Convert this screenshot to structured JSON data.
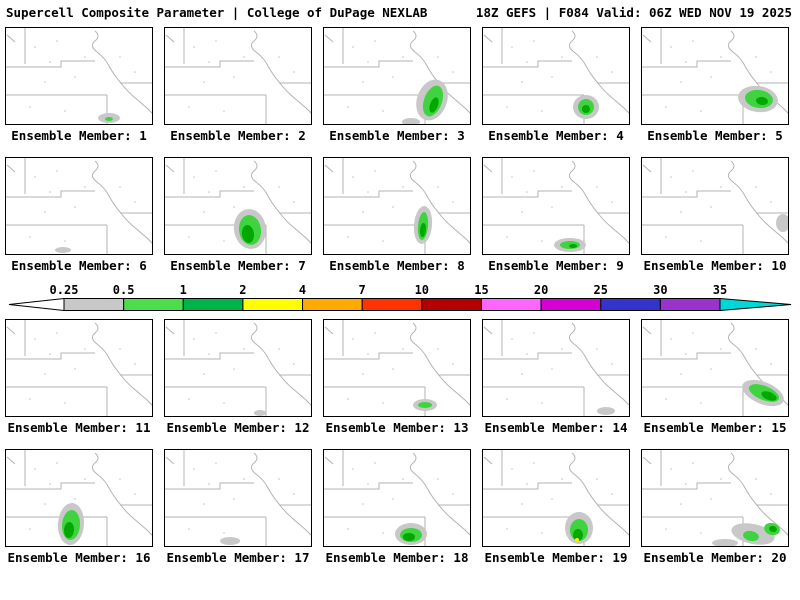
{
  "header": {
    "left": "Supercell Composite Parameter | College of DuPage NEXLAB",
    "right": "18Z GEFS | F084 Valid: 06Z WED NOV 19 2025"
  },
  "colorbar": {
    "tick_labels": [
      "0.25",
      "0.5",
      "1",
      "2",
      "4",
      "7",
      "10",
      "15",
      "20",
      "25",
      "30",
      "35"
    ],
    "segment_colors": [
      "#c8c8c8",
      "#4cdc4c",
      "#00b44c",
      "#ffff00",
      "#ffaa00",
      "#ff3300",
      "#b40000",
      "#ff66ff",
      "#d400d4",
      "#3434cc",
      "#9933cc"
    ],
    "left_arrow_color": "#ffffff",
    "right_arrow_color": "#00d8d8"
  },
  "map_style": {
    "line_color": "#b3b3b3",
    "frame_color": "#000000"
  },
  "blob_colors": {
    "gray": "#c8c8c8",
    "green": "#3fd43f",
    "dgreen": "#00a800",
    "yellow": "#ffee00"
  },
  "members": [
    {
      "label": "Ensemble Member: 1",
      "blobs": [
        [
          "gray",
          104,
          91,
          11,
          5,
          0
        ],
        [
          "green",
          104,
          92,
          4,
          2,
          0
        ]
      ]
    },
    {
      "label": "Ensemble Member: 2",
      "blobs": []
    },
    {
      "label": "Ensemble Member: 3",
      "blobs": [
        [
          "gray",
          109,
          73,
          15,
          21,
          20
        ],
        [
          "green",
          110,
          74,
          9,
          16,
          20
        ],
        [
          "dgreen",
          111,
          78,
          4,
          8,
          20
        ],
        [
          "gray",
          88,
          95,
          9,
          4,
          0
        ]
      ]
    },
    {
      "label": "Ensemble Member: 4",
      "blobs": [
        [
          "gray",
          104,
          80,
          13,
          12,
          0
        ],
        [
          "green",
          104,
          80,
          8,
          8,
          0
        ],
        [
          "dgreen",
          104,
          82,
          4,
          4,
          0
        ]
      ]
    },
    {
      "label": "Ensemble Member: 5",
      "blobs": [
        [
          "gray",
          117,
          72,
          20,
          13,
          8
        ],
        [
          "green",
          118,
          72,
          14,
          9,
          8
        ],
        [
          "dgreen",
          121,
          74,
          6,
          4,
          8
        ]
      ]
    },
    {
      "label": "Ensemble Member: 6",
      "blobs": [
        [
          "gray",
          58,
          93,
          8,
          3,
          0
        ]
      ]
    },
    {
      "label": "Ensemble Member: 7",
      "blobs": [
        [
          "gray",
          86,
          72,
          16,
          20,
          -8
        ],
        [
          "green",
          86,
          73,
          11,
          15,
          -8
        ],
        [
          "dgreen",
          84,
          77,
          6,
          9,
          -8
        ]
      ]
    },
    {
      "label": "Ensemble Member: 8",
      "blobs": [
        [
          "gray",
          100,
          68,
          9,
          19,
          5
        ],
        [
          "green",
          100,
          69,
          5,
          14,
          5
        ],
        [
          "dgreen",
          100,
          73,
          3,
          7,
          5
        ]
      ]
    },
    {
      "label": "Ensemble Member: 9",
      "blobs": [
        [
          "gray",
          88,
          88,
          16,
          7,
          0
        ],
        [
          "green",
          88,
          88,
          10,
          4,
          0
        ],
        [
          "dgreen",
          91,
          89,
          4,
          2,
          0
        ]
      ]
    },
    {
      "label": "Ensemble Member: 10",
      "blobs": [
        [
          "gray",
          142,
          66,
          7,
          9,
          0
        ]
      ]
    },
    {
      "label": "Ensemble Member: 11",
      "blobs": []
    },
    {
      "label": "Ensemble Member: 12",
      "blobs": [
        [
          "gray",
          96,
          94,
          6,
          3,
          0
        ]
      ]
    },
    {
      "label": "Ensemble Member: 13",
      "blobs": [
        [
          "gray",
          102,
          86,
          12,
          6,
          0
        ],
        [
          "green",
          102,
          86,
          7,
          3,
          0
        ]
      ]
    },
    {
      "label": "Ensemble Member: 14",
      "blobs": [
        [
          "gray",
          124,
          92,
          9,
          4,
          0
        ]
      ]
    },
    {
      "label": "Ensemble Member: 15",
      "blobs": [
        [
          "gray",
          122,
          74,
          22,
          11,
          22
        ],
        [
          "green",
          123,
          74,
          16,
          7,
          22
        ],
        [
          "dgreen",
          128,
          77,
          8,
          4,
          22
        ]
      ]
    },
    {
      "label": "Ensemble Member: 16",
      "blobs": [
        [
          "gray",
          66,
          75,
          13,
          21,
          4
        ],
        [
          "green",
          66,
          76,
          9,
          15,
          4
        ],
        [
          "dgreen",
          64,
          81,
          5,
          8,
          4
        ]
      ]
    },
    {
      "label": "Ensemble Member: 17",
      "blobs": [
        [
          "gray",
          66,
          92,
          10,
          4,
          0
        ]
      ]
    },
    {
      "label": "Ensemble Member: 18",
      "blobs": [
        [
          "gray",
          88,
          85,
          16,
          11,
          0
        ],
        [
          "green",
          88,
          86,
          11,
          7,
          0
        ],
        [
          "dgreen",
          86,
          88,
          6,
          4,
          0
        ]
      ]
    },
    {
      "label": "Ensemble Member: 19",
      "blobs": [
        [
          "gray",
          97,
          79,
          14,
          16,
          0
        ],
        [
          "green",
          97,
          81,
          9,
          11,
          0
        ],
        [
          "dgreen",
          96,
          86,
          5,
          6,
          0
        ],
        [
          "yellow",
          95,
          91,
          2,
          2,
          0
        ]
      ]
    },
    {
      "label": "Ensemble Member: 20",
      "blobs": [
        [
          "gray",
          112,
          85,
          22,
          10,
          12
        ],
        [
          "gray",
          84,
          94,
          13,
          4,
          0
        ],
        [
          "green",
          110,
          87,
          8,
          5,
          12
        ],
        [
          "green",
          131,
          80,
          8,
          6,
          15
        ],
        [
          "dgreen",
          132,
          80,
          4,
          3,
          15
        ]
      ]
    }
  ]
}
